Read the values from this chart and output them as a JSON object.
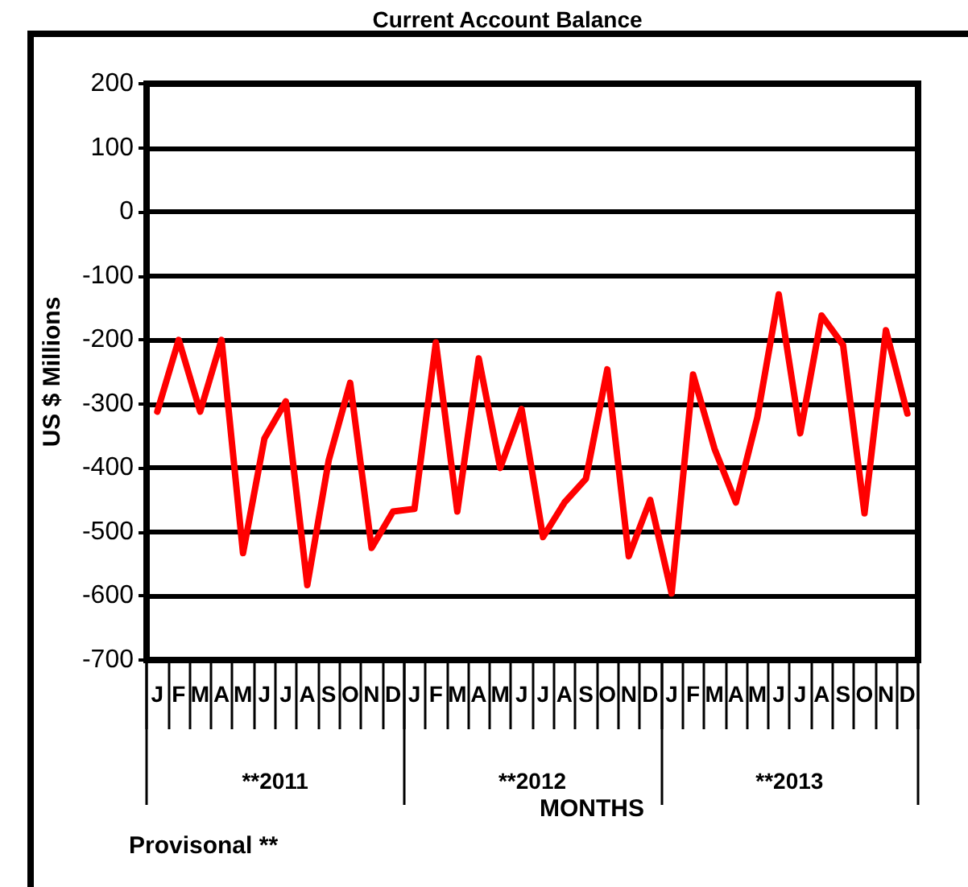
{
  "chart_data": {
    "type": "line",
    "title": "Current Account Balance",
    "xlabel": "MONTHS",
    "ylabel": "US $ Millions",
    "categories": [
      "J",
      "F",
      "M",
      "A",
      "M",
      "J",
      "J",
      "A",
      "S",
      "O",
      "N",
      "D",
      "J",
      "F",
      "M",
      "A",
      "M",
      "J",
      "J",
      "A",
      "S",
      "O",
      "N",
      "D",
      "J",
      "F",
      "M",
      "A",
      "M",
      "J",
      "J",
      "A",
      "S",
      "O",
      "N",
      "D"
    ],
    "series": [
      {
        "color": "#ff0000",
        "values": [
          -312,
          -200,
          -312,
          -200,
          -533,
          -354,
          -296,
          -583,
          -388,
          -267,
          -525,
          -468,
          -464,
          -204,
          -468,
          -229,
          -400,
          -308,
          -508,
          -454,
          -417,
          -246,
          -538,
          -450,
          -596,
          -254,
          -370,
          -454,
          -321,
          -129,
          -346,
          -162,
          -208,
          -471,
          -185,
          -315
        ]
      }
    ],
    "ylim": [
      -700,
      200
    ],
    "yticks": [
      -700,
      -600,
      -500,
      -400,
      -300,
      -200,
      -100,
      0,
      100,
      200
    ],
    "annotations": [
      "**2011",
      "**2012",
      "**2013",
      "Provisonal **"
    ],
    "grid": "y",
    "marker": "none",
    "line_style": "solid"
  }
}
